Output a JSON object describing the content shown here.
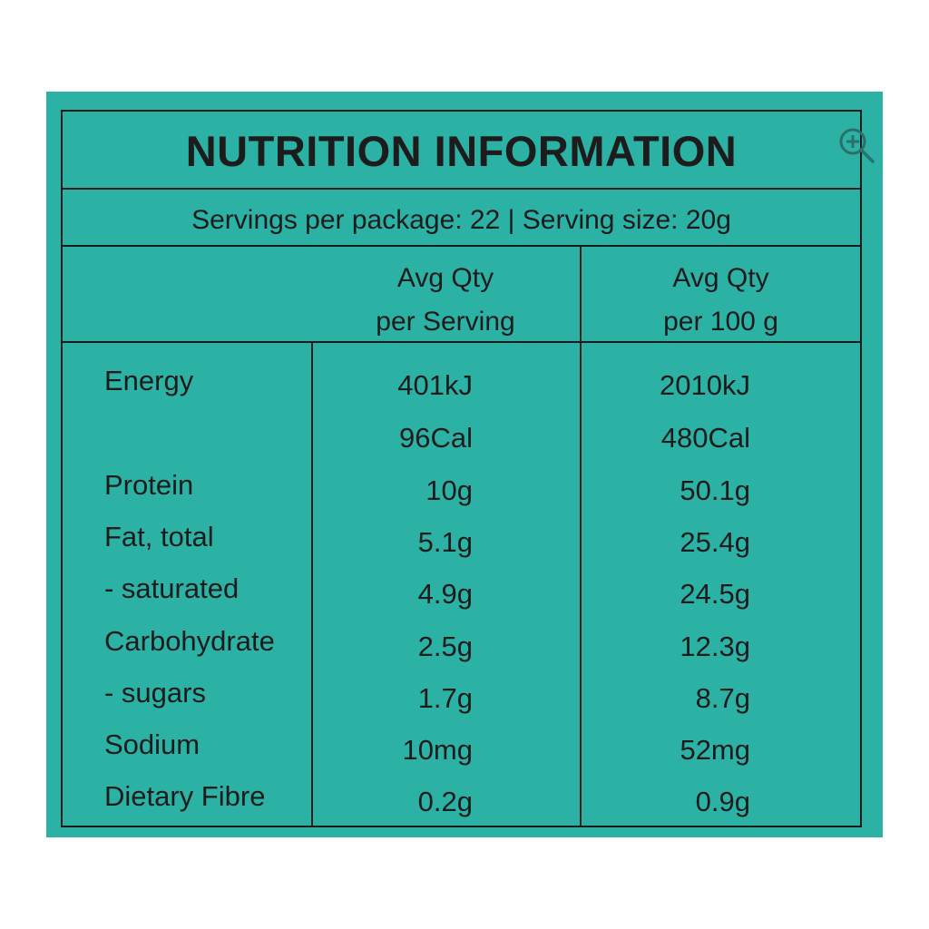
{
  "title": "NUTRITION INFORMATION",
  "servings_line": "Servings per package: 22 | Serving size: 20g",
  "columns": {
    "per_serving_line1": "Avg Qty",
    "per_serving_line2": "per Serving",
    "per_100g_line1": "Avg Qty",
    "per_100g_line2": "per 100 g"
  },
  "rows": [
    {
      "label": "Energy",
      "per_serving": "401kJ",
      "per_100g": "2010kJ"
    },
    {
      "label": "",
      "per_serving": "96Cal",
      "per_100g": "480Cal"
    },
    {
      "label": "Protein",
      "per_serving": "10g",
      "per_100g": "50.1g"
    },
    {
      "label": "Fat, total",
      "per_serving": "5.1g",
      "per_100g": "25.4g"
    },
    {
      "label": "- saturated",
      "per_serving": "4.9g",
      "per_100g": "24.5g"
    },
    {
      "label": "Carbohydrate",
      "per_serving": "2.5g",
      "per_100g": "12.3g"
    },
    {
      "label": "- sugars",
      "per_serving": "1.7g",
      "per_100g": "8.7g"
    },
    {
      "label": "Sodium",
      "per_serving": "10mg",
      "per_100g": "52mg"
    },
    {
      "label": "Dietary Fibre",
      "per_serving": "0.2g",
      "per_100g": "0.9g"
    }
  ],
  "colors": {
    "panel": "#2cb1a5",
    "ink": "#1c1c1c"
  },
  "icons": {
    "zoom": "zoom-in-icon"
  }
}
